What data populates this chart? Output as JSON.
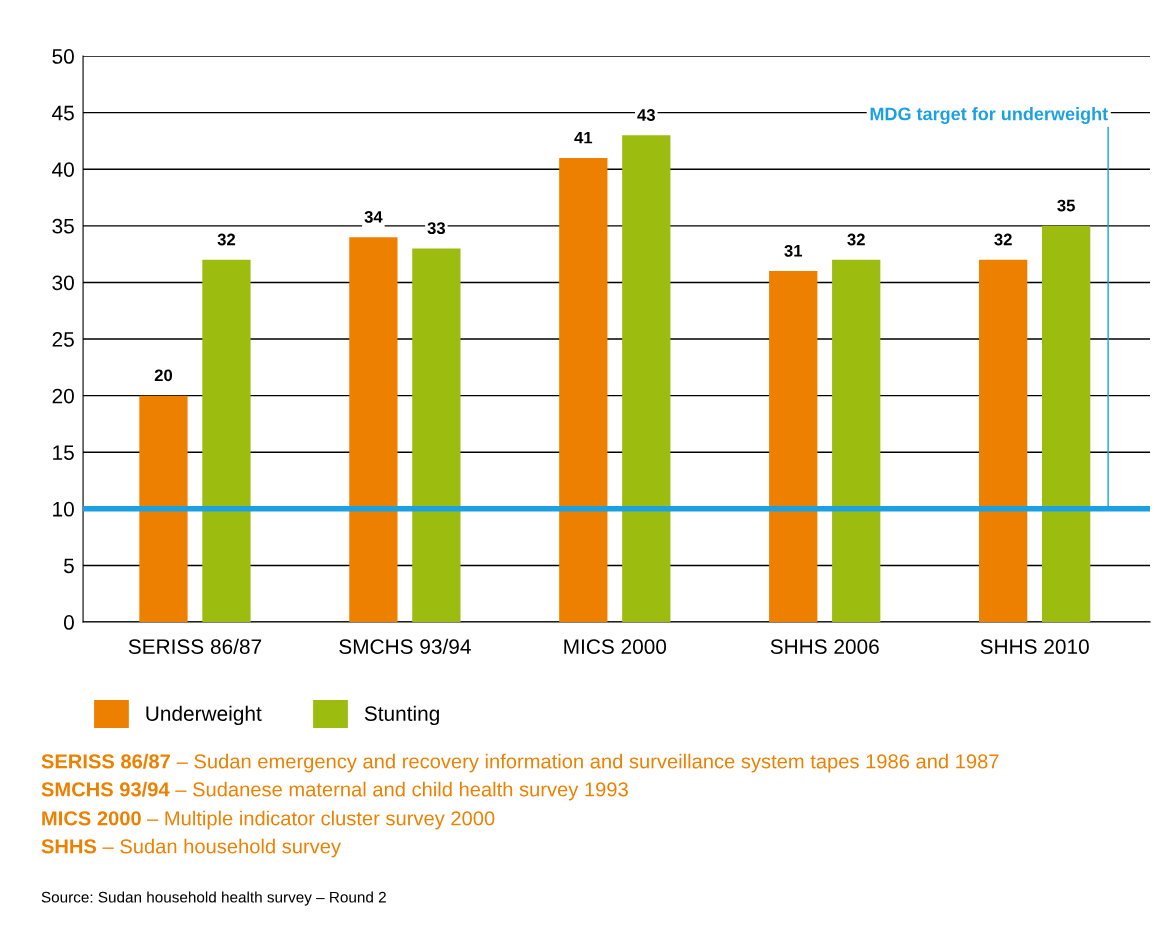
{
  "chart_data": {
    "type": "bar",
    "categories": [
      "SERISS 86/87",
      "SMCHS 93/94",
      "MICS 2000",
      "SHHS 2006",
      "SHHS 2010"
    ],
    "series": [
      {
        "name": "Underweight",
        "color": "#ee8000",
        "values": [
          20,
          34,
          41,
          31,
          32
        ]
      },
      {
        "name": "Stunting",
        "color": "#9cbc10",
        "values": [
          32,
          33,
          43,
          32,
          35
        ]
      }
    ],
    "ylim": [
      0,
      50
    ],
    "yticks": [
      0,
      5,
      10,
      15,
      20,
      25,
      30,
      35,
      40,
      45,
      50
    ],
    "grid": "y",
    "legend": "bottom left",
    "data_labels": true,
    "ref_lines": [
      {
        "axis": "y",
        "value": 10,
        "label": "MDG target for underweight",
        "color": "#1ba1e2"
      }
    ],
    "annotations": [
      "SERISS 86/87 – Sudan emergency and recovery information and surveillance system tapes 1986 and 1987",
      "SMCHS 93/94 – Sudanese maternal and child health survey 1993",
      "MICS 2000 – Multiple indicator cluster survey 2000",
      "SHHS – Sudan household survey",
      "Source: Sudan household health survey – Round 2"
    ]
  }
}
